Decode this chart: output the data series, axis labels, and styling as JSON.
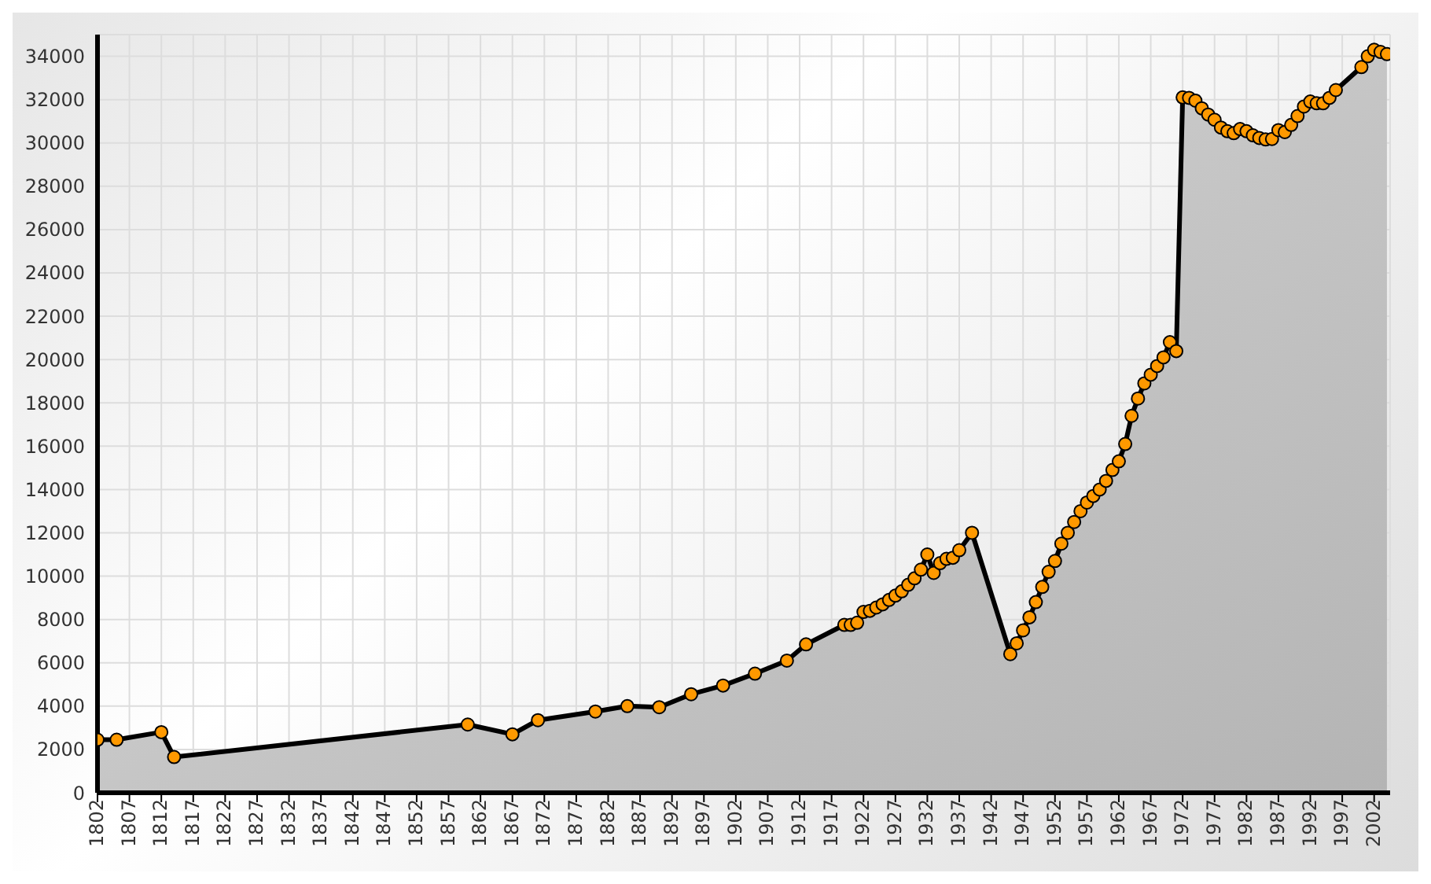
{
  "chart_data": {
    "type": "area",
    "x": [
      1802,
      1805,
      1812,
      1814,
      1860,
      1867,
      1871,
      1880,
      1885,
      1890,
      1895,
      1900,
      1905,
      1910,
      1913,
      1919,
      1920,
      1921,
      1922,
      1923,
      1924,
      1925,
      1926,
      1927,
      1928,
      1929,
      1930,
      1931,
      1932,
      1933,
      1934,
      1935,
      1936,
      1937,
      1939,
      1945,
      1946,
      1947,
      1948,
      1949,
      1950,
      1951,
      1952,
      1953,
      1954,
      1955,
      1956,
      1957,
      1958,
      1959,
      1960,
      1961,
      1962,
      1963,
      1964,
      1965,
      1966,
      1967,
      1968,
      1969,
      1970,
      1971,
      1972,
      1973,
      1974,
      1975,
      1976,
      1977,
      1978,
      1979,
      1980,
      1981,
      1982,
      1983,
      1984,
      1985,
      1986,
      1987,
      1988,
      1989,
      1990,
      1991,
      1992,
      1993,
      1994,
      1995,
      1996,
      2000,
      2001,
      2002,
      2003,
      2004
    ],
    "series": [
      {
        "color": "#000000",
        "values": [
          2450,
          2450,
          2800,
          1650,
          3150,
          2700,
          3350,
          3750,
          4000,
          3950,
          4550,
          4950,
          5500,
          6100,
          6850,
          7750,
          7750,
          7850,
          8350,
          8400,
          8550,
          8700,
          8900,
          9100,
          9300,
          9600,
          9900,
          10300,
          11000,
          10150,
          10600,
          10800,
          10850,
          11200,
          12000,
          6400,
          6900,
          7500,
          8100,
          8800,
          9500,
          10200,
          10700,
          11500,
          12000,
          12500,
          13000,
          13400,
          13700,
          14000,
          14400,
          14900,
          15300,
          16100,
          17400,
          18200,
          18900,
          19300,
          19700,
          20100,
          20800,
          20390,
          32100,
          32080,
          31950,
          31600,
          31310,
          31070,
          30710,
          30540,
          30450,
          30640,
          30540,
          30350,
          30230,
          30160,
          30180,
          30590,
          30500,
          30830,
          31240,
          31680,
          31910,
          31830,
          31830,
          32080,
          32440,
          33500,
          34000,
          34300,
          34200,
          34100
        ]
      }
    ],
    "xlim": [
      1802,
      2004.5
    ],
    "xticks": [
      1802,
      1807,
      1812,
      1817,
      1822,
      1827,
      1832,
      1837,
      1842,
      1847,
      1852,
      1857,
      1862,
      1867,
      1872,
      1877,
      1882,
      1887,
      1892,
      1897,
      1902,
      1907,
      1912,
      1917,
      1922,
      1927,
      1932,
      1937,
      1942,
      1947,
      1952,
      1957,
      1962,
      1967,
      1972,
      1977,
      1982,
      1987,
      1992,
      1997,
      2002
    ],
    "ylim": [
      0,
      35000
    ],
    "yticks": [
      0,
      2000,
      4000,
      6000,
      8000,
      10000,
      12000,
      14000,
      16000,
      18000,
      20000,
      22000,
      24000,
      26000,
      28000,
      30000,
      32000,
      34000
    ],
    "grid": true,
    "marker": "circle",
    "line_style": "solid",
    "legend": false
  }
}
